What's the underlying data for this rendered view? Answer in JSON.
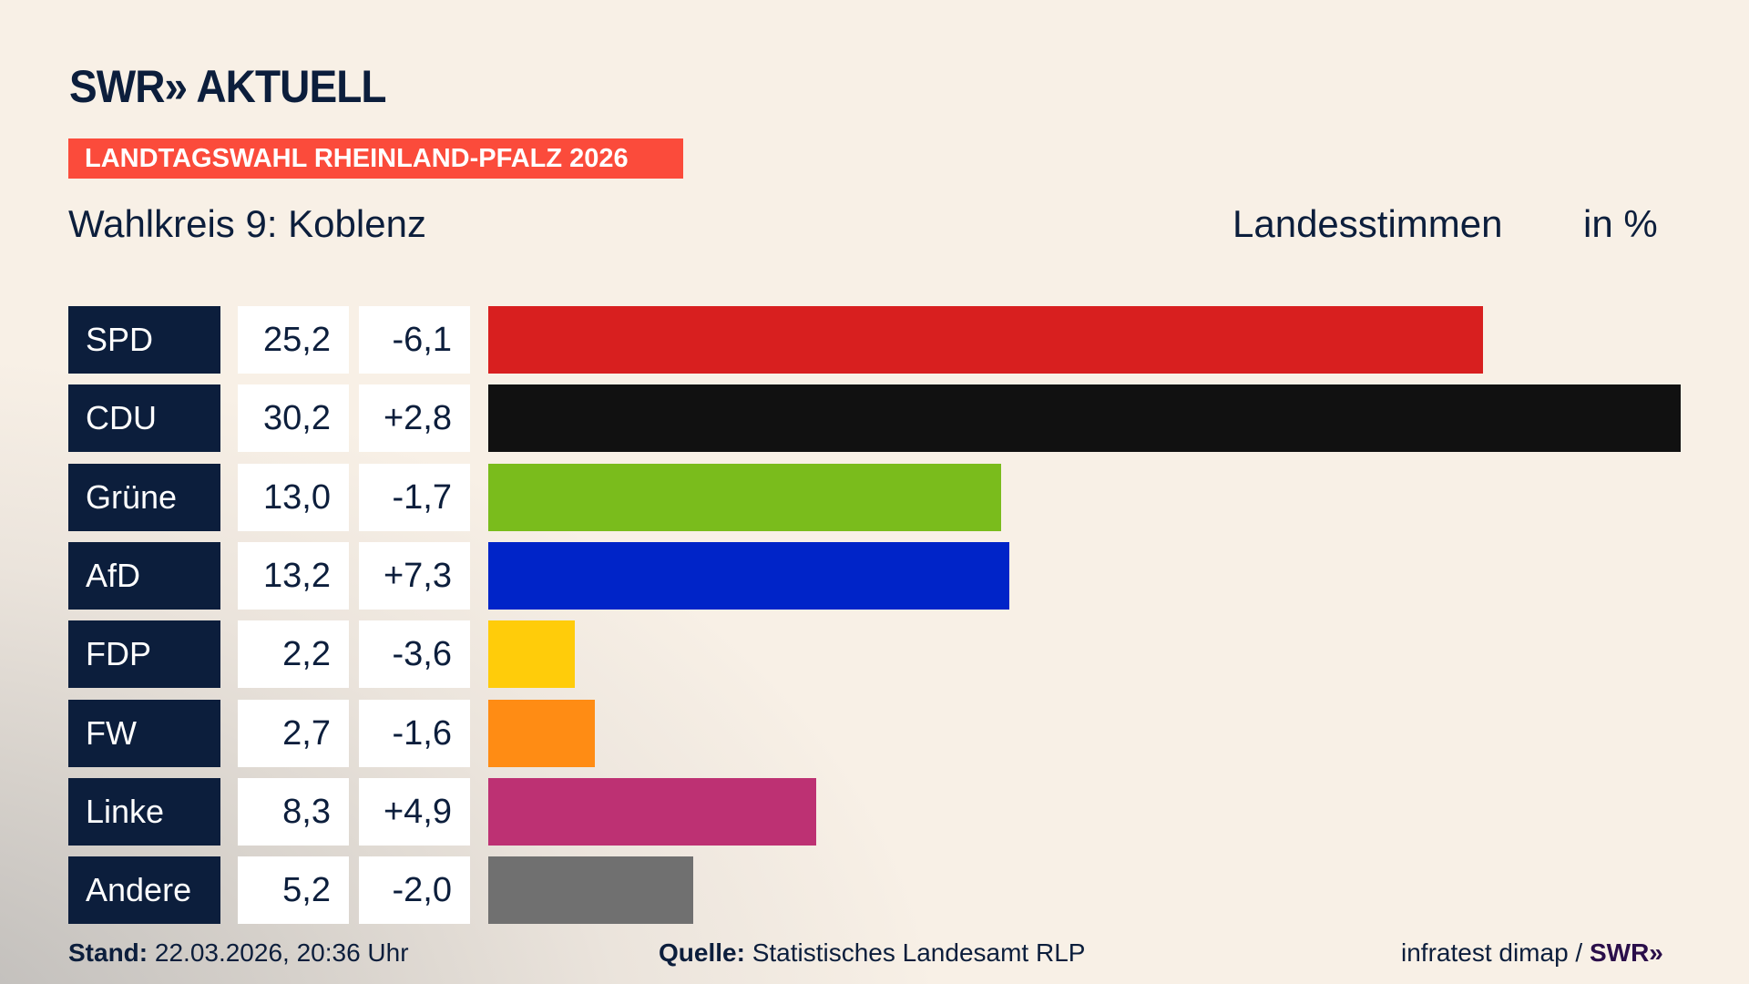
{
  "header": {
    "logo": "SWR» AKTUELL",
    "banner": "LANDTAGSWAHL RHEINLAND-PFALZ 2026",
    "subtitle": "Wahlkreis 9: Koblenz",
    "measure": "Landesstimmen",
    "unit": "in %"
  },
  "chart_data": {
    "type": "bar",
    "orientation": "horizontal",
    "categories": [
      "SPD",
      "CDU",
      "Grüne",
      "AfD",
      "FDP",
      "FW",
      "Linke",
      "Andere"
    ],
    "values": [
      25.2,
      30.2,
      13.0,
      13.2,
      2.2,
      2.7,
      8.3,
      5.2
    ],
    "value_labels": [
      "25,2",
      "30,2",
      "13,0",
      "13,2",
      "2,2",
      "2,7",
      "8,3",
      "5,2"
    ],
    "change": [
      -6.1,
      2.8,
      -1.7,
      7.3,
      -3.6,
      -1.6,
      4.9,
      -2.0
    ],
    "change_labels": [
      "-6,1",
      "+2,8",
      "-1,7",
      "+7,3",
      "-3,6",
      "-1,6",
      "+4,9",
      "-2,0"
    ],
    "colors": [
      "#d81f1f",
      "#111111",
      "#7abc1c",
      "#0024c8",
      "#ffcc0a",
      "#ff8c14",
      "#bd3173",
      "#707070"
    ],
    "grid": false
  },
  "footer": {
    "stand_label": "Stand:",
    "stand": "22.03.2026, 20:36 Uhr",
    "source_label": "Quelle:",
    "source": "Statistisches Landesamt RLP",
    "credit": "infratest dimap /",
    "credit_logo": "SWR»"
  }
}
